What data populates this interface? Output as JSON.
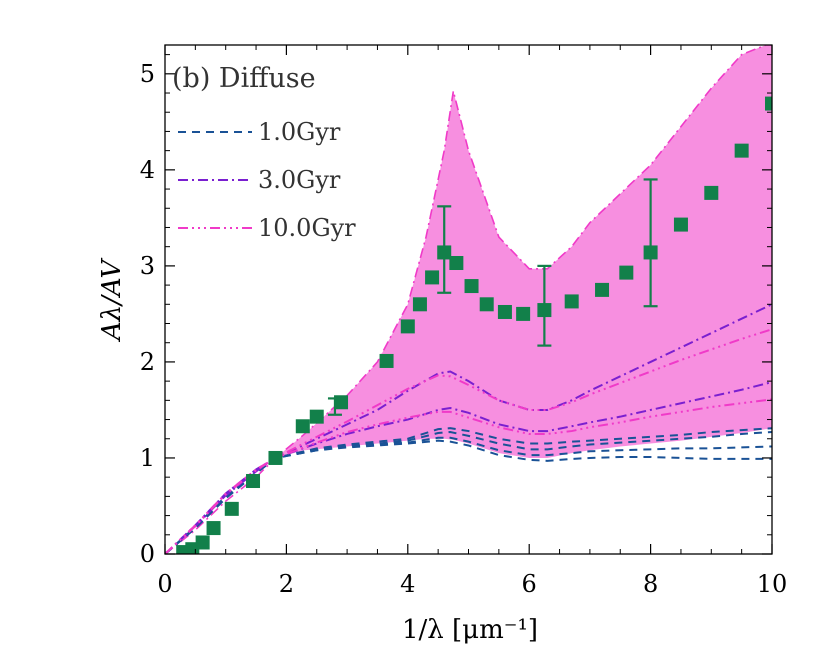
{
  "chart_data": {
    "type": "line",
    "panel_label": "(b) Diffuse",
    "xlabel": "1/λ [μm⁻¹]",
    "ylabel": "Aλ/AV",
    "xlim": [
      0,
      10
    ],
    "ylim": [
      0,
      5.3
    ],
    "xticks": [
      "0",
      "2",
      "4",
      "6",
      "8",
      "10"
    ],
    "yticks": [
      "0",
      "1",
      "2",
      "3",
      "4",
      "5"
    ],
    "colors": {
      "band": "#f78fe0",
      "observed": "#12804a",
      "s1": "#1a5296",
      "s3": "#7a1fd0",
      "s10": "#f03ac8"
    },
    "legend": [
      {
        "label": "1.0Gyr",
        "dash": "8,6",
        "color": "#1a5296"
      },
      {
        "label": "3.0Gyr",
        "dash": "10,4,2,4",
        "color": "#7a1fd0"
      },
      {
        "label": "10.0Gyr",
        "dash": "10,4,2,4,2,4,2,4",
        "color": "#f03ac8"
      }
    ],
    "band": {
      "x": [
        0,
        0.5,
        1,
        1.5,
        1.82,
        2.3,
        3,
        3.5,
        4,
        4.3,
        4.6,
        4.75,
        5,
        5.5,
        6,
        6.3,
        6.7,
        7,
        7.5,
        8,
        8.5,
        9,
        9.5,
        9.9,
        10
      ],
      "upper": [
        0,
        0.25,
        0.55,
        0.8,
        1.0,
        1.25,
        1.65,
        2.0,
        2.6,
        3.3,
        4.2,
        4.82,
        4.2,
        3.3,
        2.97,
        2.97,
        3.2,
        3.45,
        3.75,
        4.05,
        4.45,
        4.85,
        5.2,
        5.3,
        5.3
      ],
      "lower": [
        0,
        0.25,
        0.55,
        0.8,
        1.0,
        1.08,
        1.12,
        1.15,
        1.18,
        1.2,
        1.2,
        1.19,
        1.15,
        1.05,
        1.0,
        1.0,
        1.05,
        1.08,
        1.12,
        1.15,
        1.18,
        1.22,
        1.26,
        1.3,
        1.3
      ]
    },
    "x": [
      0,
      0.5,
      1,
      1.5,
      1.82,
      2.5,
      3,
      3.5,
      4,
      4.5,
      4.7,
      5,
      5.5,
      6,
      6.3,
      6.7,
      7,
      7.5,
      8,
      8.5,
      9,
      9.5,
      10
    ],
    "series": [
      {
        "name": "1.0Gyr",
        "style": "s1",
        "values": [
          0,
          0.28,
          0.6,
          0.85,
          1.0,
          1.1,
          1.14,
          1.17,
          1.2,
          1.3,
          1.31,
          1.28,
          1.2,
          1.15,
          1.15,
          1.17,
          1.18,
          1.2,
          1.22,
          1.24,
          1.27,
          1.29,
          1.31
        ]
      },
      {
        "name": "1.0Gyr",
        "style": "s1",
        "values": [
          0,
          0.28,
          0.6,
          0.85,
          1.0,
          1.09,
          1.13,
          1.15,
          1.18,
          1.26,
          1.27,
          1.23,
          1.15,
          1.09,
          1.09,
          1.12,
          1.14,
          1.16,
          1.18,
          1.2,
          1.22,
          1.25,
          1.27
        ]
      },
      {
        "name": "1.0Gyr",
        "style": "s1",
        "values": [
          0,
          0.27,
          0.58,
          0.84,
          1.0,
          1.08,
          1.12,
          1.14,
          1.16,
          1.21,
          1.21,
          1.17,
          1.08,
          1.03,
          1.03,
          1.05,
          1.07,
          1.08,
          1.09,
          1.1,
          1.1,
          1.11,
          1.12
        ]
      },
      {
        "name": "1.0Gyr",
        "style": "s1",
        "values": [
          0,
          0.27,
          0.58,
          0.84,
          1.0,
          1.08,
          1.11,
          1.13,
          1.15,
          1.18,
          1.17,
          1.13,
          1.03,
          0.98,
          0.97,
          0.99,
          1.0,
          1.01,
          1.01,
          1.0,
          0.99,
          0.99,
          0.99
        ]
      },
      {
        "name": "3.0Gyr",
        "style": "s3",
        "values": [
          0,
          0.3,
          0.63,
          0.88,
          1.0,
          1.2,
          1.35,
          1.5,
          1.7,
          1.88,
          1.9,
          1.8,
          1.6,
          1.5,
          1.5,
          1.6,
          1.7,
          1.85,
          2.0,
          2.15,
          2.3,
          2.45,
          2.6
        ]
      },
      {
        "name": "3.0Gyr",
        "style": "s3",
        "values": [
          0,
          0.29,
          0.61,
          0.86,
          1.0,
          1.15,
          1.25,
          1.33,
          1.4,
          1.5,
          1.52,
          1.47,
          1.35,
          1.28,
          1.28,
          1.33,
          1.37,
          1.43,
          1.5,
          1.57,
          1.64,
          1.71,
          1.79
        ]
      },
      {
        "name": "10.0Gyr",
        "style": "s10",
        "values": [
          0,
          0.3,
          0.63,
          0.88,
          1.0,
          1.22,
          1.38,
          1.55,
          1.72,
          1.86,
          1.85,
          1.76,
          1.6,
          1.5,
          1.5,
          1.58,
          1.66,
          1.78,
          1.9,
          2.02,
          2.13,
          2.24,
          2.34
        ]
      },
      {
        "name": "10.0Gyr",
        "style": "s10",
        "values": [
          0,
          0.29,
          0.62,
          0.87,
          1.0,
          1.16,
          1.27,
          1.35,
          1.42,
          1.48,
          1.48,
          1.42,
          1.32,
          1.25,
          1.25,
          1.28,
          1.32,
          1.37,
          1.43,
          1.48,
          1.53,
          1.57,
          1.61
        ]
      }
    ],
    "observed": {
      "x": [
        0.3,
        0.45,
        0.62,
        0.8,
        1.1,
        1.45,
        1.82,
        2.27,
        2.5,
        2.9,
        3.65,
        4.0,
        4.2,
        4.4,
        4.6,
        4.8,
        5.05,
        5.3,
        5.6,
        5.9,
        6.25,
        6.7,
        7.2,
        7.6,
        8.0,
        8.5,
        9.0,
        9.5,
        10.0
      ],
      "y": [
        0.02,
        0.05,
        0.12,
        0.27,
        0.47,
        0.76,
        1.0,
        1.33,
        1.43,
        1.58,
        2.01,
        2.37,
        2.6,
        2.88,
        3.14,
        3.03,
        2.79,
        2.6,
        2.52,
        2.5,
        2.54,
        2.63,
        2.75,
        2.93,
        3.14,
        3.43,
        3.76,
        4.2,
        4.69
      ]
    },
    "error_bars": [
      {
        "x": 2.8,
        "low": 1.45,
        "high": 1.62
      },
      {
        "x": 4.6,
        "low": 2.72,
        "high": 3.62
      },
      {
        "x": 6.25,
        "low": 2.17,
        "high": 3.0
      },
      {
        "x": 8.0,
        "low": 2.58,
        "high": 3.9
      }
    ]
  }
}
